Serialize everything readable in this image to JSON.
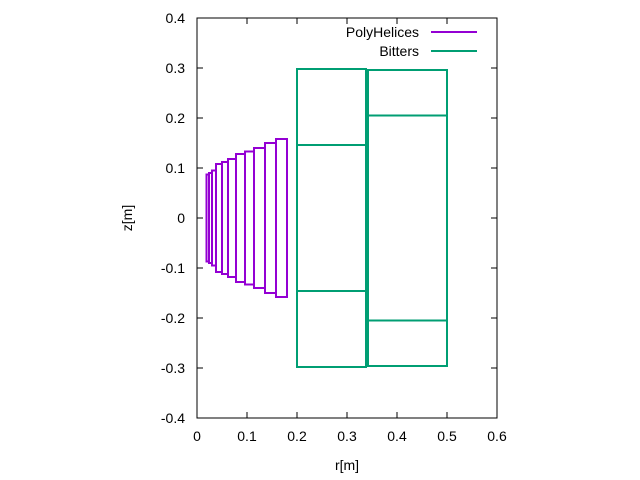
{
  "chart_data": {
    "type": "scatter",
    "xlabel": "r[m]",
    "ylabel": "z[m]",
    "xlim": [
      0,
      0.6
    ],
    "ylim": [
      -0.4,
      0.4
    ],
    "xticks": [
      "0",
      "0.1",
      "0.2",
      "0.3",
      "0.4",
      "0.5",
      "0.6"
    ],
    "yticks": [
      "0.4",
      "0.3",
      "0.2",
      "0.1",
      "0",
      "-0.1",
      "-0.2",
      "-0.3",
      "-0.4"
    ],
    "grid": false,
    "legend": "top-right",
    "series": [
      {
        "name": "PolyHelices",
        "color": "#9400d3",
        "rects": [
          {
            "r1": 0.019,
            "r2": 0.024,
            "z1": -0.087,
            "z2": 0.087
          },
          {
            "r1": 0.024,
            "r2": 0.03,
            "z1": -0.09,
            "z2": 0.09
          },
          {
            "r1": 0.03,
            "r2": 0.038,
            "z1": -0.095,
            "z2": 0.095
          },
          {
            "r1": 0.038,
            "r2": 0.05,
            "z1": -0.108,
            "z2": 0.108
          },
          {
            "r1": 0.05,
            "r2": 0.062,
            "z1": -0.112,
            "z2": 0.112
          },
          {
            "r1": 0.062,
            "r2": 0.078,
            "z1": -0.118,
            "z2": 0.118
          },
          {
            "r1": 0.078,
            "r2": 0.096,
            "z1": -0.128,
            "z2": 0.128
          },
          {
            "r1": 0.096,
            "r2": 0.114,
            "z1": -0.133,
            "z2": 0.133
          },
          {
            "r1": 0.114,
            "r2": 0.136,
            "z1": -0.14,
            "z2": 0.14
          },
          {
            "r1": 0.136,
            "r2": 0.158,
            "z1": -0.15,
            "z2": 0.15
          },
          {
            "r1": 0.158,
            "r2": 0.18,
            "z1": -0.158,
            "z2": 0.158
          }
        ]
      },
      {
        "name": "Bitters",
        "color": "#009e73",
        "rects": [
          {
            "r1": 0.2,
            "r2": 0.338,
            "z1": 0.146,
            "z2": 0.298
          },
          {
            "r1": 0.2,
            "r2": 0.338,
            "z1": -0.146,
            "z2": 0.146
          },
          {
            "r1": 0.2,
            "r2": 0.338,
            "z1": -0.298,
            "z2": -0.146
          },
          {
            "r1": 0.342,
            "r2": 0.5,
            "z1": 0.205,
            "z2": 0.296
          },
          {
            "r1": 0.342,
            "r2": 0.5,
            "z1": -0.205,
            "z2": 0.205
          },
          {
            "r1": 0.342,
            "r2": 0.5,
            "z1": -0.296,
            "z2": -0.205
          }
        ]
      }
    ]
  }
}
